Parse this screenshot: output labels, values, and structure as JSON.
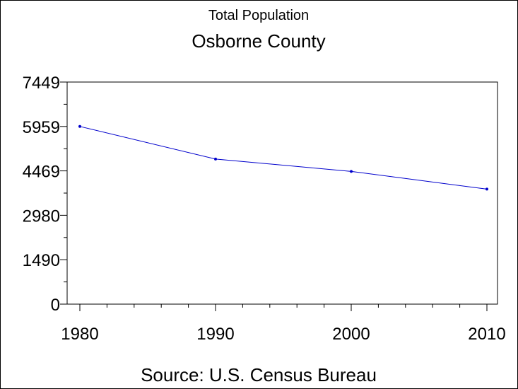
{
  "chart_data": {
    "type": "line",
    "title": "Osborne County",
    "subtitle": "Total Population",
    "footnote": "Source: U.S. Census Bureau",
    "xlabel": "",
    "ylabel": "",
    "x": [
      1980,
      1990,
      2000,
      2010
    ],
    "x_tick_labels": [
      "1980",
      "1990",
      "2000",
      "2010"
    ],
    "xlim": [
      1980,
      2010
    ],
    "y_ticks": [
      0,
      1490,
      2980,
      4469,
      5959,
      7449
    ],
    "y_tick_labels": [
      "0",
      "1490",
      "2980",
      "4469",
      "5959",
      "7449"
    ],
    "ylim": [
      0,
      7449
    ],
    "grid": false,
    "series": [
      {
        "values": [
          5959,
          4867,
          4452,
          3858
        ],
        "color": "#0000cc"
      }
    ]
  }
}
